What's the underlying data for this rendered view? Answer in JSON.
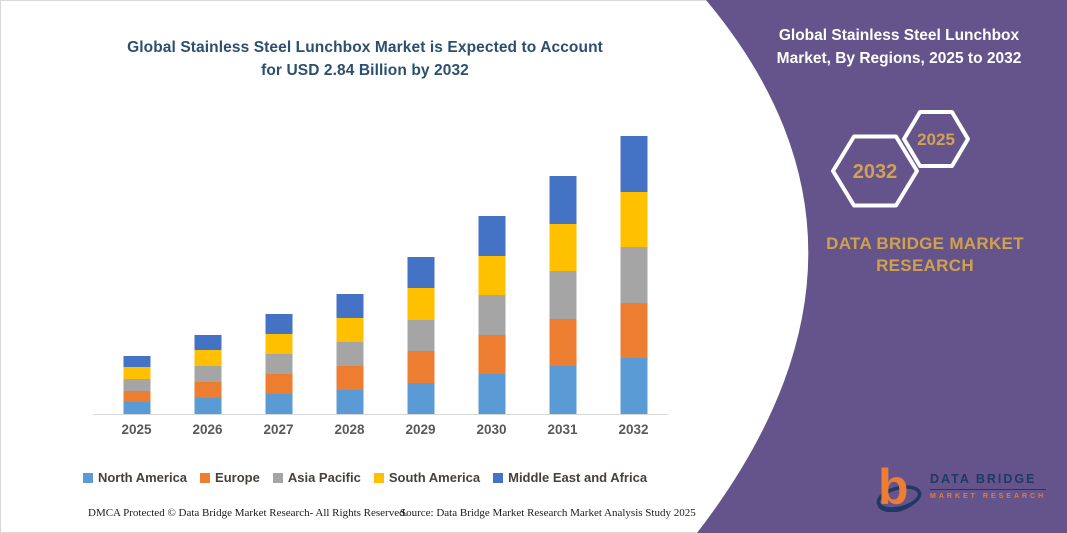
{
  "left_section": {
    "title_lines": [
      "Global Stainless Steel Lunchbox Market is Expected to Account",
      "for USD 2.84 Billion by 2032"
    ]
  },
  "right_panel": {
    "title_lines": [
      "Global Stainless Steel Lunchbox",
      "Market, By Regions, 2025 to 2032"
    ],
    "hexagon_years": {
      "back": "2025",
      "front": "2032"
    },
    "brand_lines": [
      "DATA BRIDGE MARKET",
      "RESEARCH"
    ],
    "logo": {
      "name": "DATA BRIDGE",
      "subtitle": "MARKET RESEARCH"
    },
    "colors": {
      "panel_purple": "#65548c",
      "gold": "#d2a155"
    }
  },
  "footer": {
    "dmca": "DMCA Protected © Data Bridge Market Research-  All Rights Reserved.",
    "source": "Source: Data Bridge Market Research  Market Analysis Study 2025"
  },
  "chart_data": {
    "type": "bar",
    "subtype": "stacked-vertical",
    "title": "Global Stainless Steel Lunchbox Market is Expected to Account for USD 2.84 Billion by 2032",
    "unit": "USD Billion",
    "categories": [
      "2025",
      "2026",
      "2027",
      "2028",
      "2029",
      "2030",
      "2031",
      "2032"
    ],
    "series": [
      {
        "name": "North America",
        "color": "#5b9bd5",
        "values": [
          0.12,
          0.162,
          0.204,
          0.246,
          0.322,
          0.404,
          0.486,
          0.568
        ]
      },
      {
        "name": "Europe",
        "color": "#ed7d31",
        "values": [
          0.12,
          0.162,
          0.204,
          0.246,
          0.322,
          0.404,
          0.486,
          0.568
        ]
      },
      {
        "name": "Asia Pacific",
        "color": "#a5a5a5",
        "values": [
          0.12,
          0.162,
          0.204,
          0.246,
          0.322,
          0.404,
          0.486,
          0.568
        ]
      },
      {
        "name": "South America",
        "color": "#ffc000",
        "values": [
          0.12,
          0.162,
          0.204,
          0.246,
          0.322,
          0.404,
          0.486,
          0.568
        ]
      },
      {
        "name": "Middle East and Africa",
        "color": "#4472c4",
        "values": [
          0.12,
          0.162,
          0.204,
          0.246,
          0.322,
          0.404,
          0.486,
          0.568
        ]
      }
    ],
    "totals": [
      0.6,
      0.81,
      1.02,
      1.23,
      1.61,
      2.02,
      2.43,
      2.84
    ],
    "xlabel": "",
    "ylabel": "",
    "ylim": [
      0,
      3.0
    ],
    "grid": false,
    "y_axis_visible": false,
    "legend_position": "bottom"
  }
}
